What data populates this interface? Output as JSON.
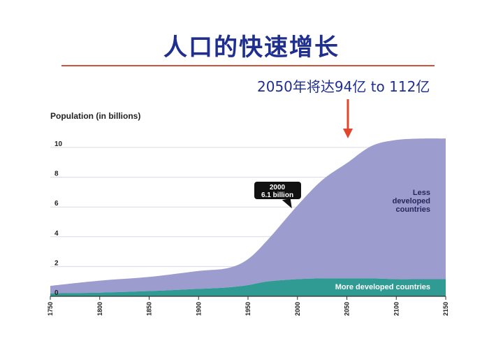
{
  "slide": {
    "title": "人口的快速增长",
    "annotation": "2050年将达94亿 to 112亿"
  },
  "colors": {
    "title": "#1f2f8f",
    "divider": "#c9543b",
    "arrow": "#e2452b",
    "less_developed": "#9d9ccf",
    "more_developed": "#2f9b93",
    "callout_bg": "#111111"
  },
  "chart_data": {
    "type": "area",
    "stacked": true,
    "ylabel": "Population (in billions)",
    "xlabel": "",
    "xlim": [
      1750,
      2150
    ],
    "ylim": [
      0,
      10
    ],
    "xticks": [
      1750,
      1800,
      1850,
      1900,
      1950,
      2000,
      2050,
      2100,
      2150
    ],
    "yticks": [
      0,
      2,
      4,
      6,
      8,
      10
    ],
    "grid": "horizontal",
    "callout": {
      "year_label": "2000",
      "value_label": "6.1 billion",
      "x": 2000,
      "y": 6.1
    },
    "x": [
      1750,
      1800,
      1850,
      1900,
      1930,
      1950,
      1970,
      2000,
      2025,
      2050,
      2075,
      2100,
      2125,
      2150
    ],
    "series": [
      {
        "name": "More developed countries",
        "values": [
          0.2,
          0.25,
          0.35,
          0.5,
          0.6,
          0.75,
          1.0,
          1.15,
          1.2,
          1.2,
          1.2,
          1.15,
          1.15,
          1.15
        ]
      },
      {
        "name": "Less\ndeveloped\ncountries",
        "values": [
          0.5,
          0.8,
          0.95,
          1.2,
          1.3,
          1.75,
          2.8,
          4.95,
          6.6,
          7.75,
          8.9,
          9.35,
          9.45,
          9.45
        ]
      }
    ]
  }
}
